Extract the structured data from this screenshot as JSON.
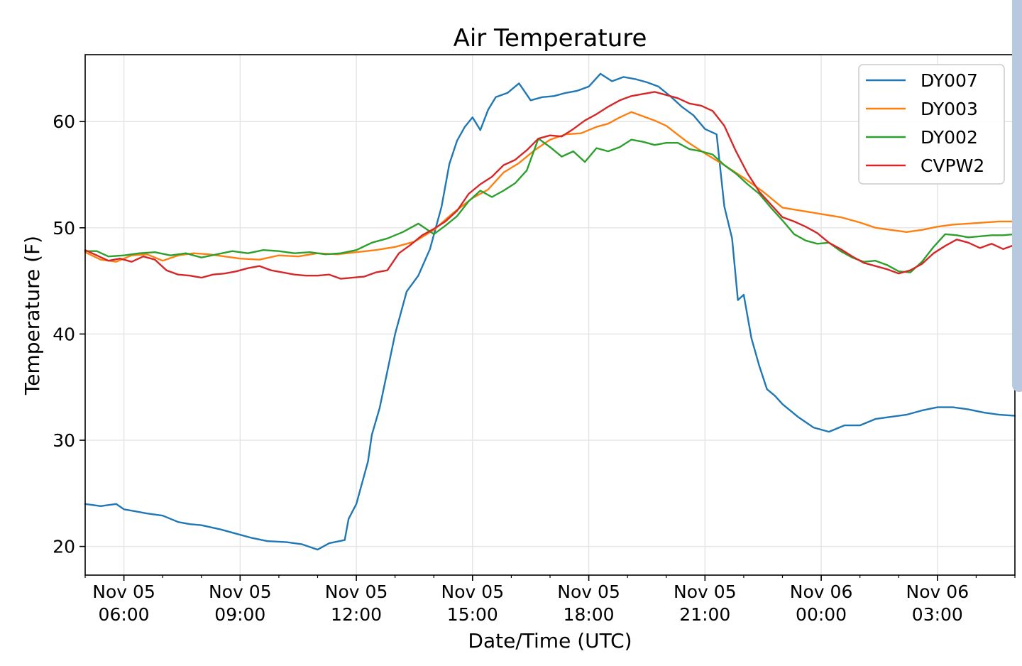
{
  "chart_data": {
    "type": "line",
    "title": "Air Temperature",
    "xlabel": "Date/Time (UTC)",
    "ylabel": "Temperature (F)",
    "x_unit": "hours since Nov 05 00:00 UTC",
    "xlim": [
      5.0,
      29.0
    ],
    "ylim": [
      17.3,
      66.3
    ],
    "grid": true,
    "legend_position": "top-right",
    "y_ticks": [
      20,
      30,
      40,
      50,
      60
    ],
    "x_ticks": [
      {
        "value": 6,
        "line1": "Nov 05",
        "line2": "06:00"
      },
      {
        "value": 9,
        "line1": "Nov 05",
        "line2": "09:00"
      },
      {
        "value": 12,
        "line1": "Nov 05",
        "line2": "12:00"
      },
      {
        "value": 15,
        "line1": "Nov 05",
        "line2": "15:00"
      },
      {
        "value": 18,
        "line1": "Nov 05",
        "line2": "18:00"
      },
      {
        "value": 21,
        "line1": "Nov 05",
        "line2": "21:00"
      },
      {
        "value": 24,
        "line1": "Nov 06",
        "line2": "00:00"
      },
      {
        "value": 27,
        "line1": "Nov 06",
        "line2": "03:00"
      }
    ],
    "series": [
      {
        "name": "DY007",
        "color": "#1f77b4",
        "x": [
          5.0,
          5.4,
          5.8,
          6.0,
          6.3,
          6.6,
          7.0,
          7.4,
          7.7,
          8.0,
          8.5,
          8.9,
          9.3,
          9.7,
          10.2,
          10.6,
          11.0,
          11.3,
          11.7,
          11.8,
          12.0,
          12.3,
          12.4,
          12.6,
          12.8,
          13.0,
          13.3,
          13.6,
          13.9,
          14.2,
          14.4,
          14.6,
          14.8,
          15.0,
          15.2,
          15.4,
          15.6,
          15.9,
          16.2,
          16.5,
          16.8,
          17.1,
          17.4,
          17.7,
          18.0,
          18.3,
          18.6,
          18.9,
          19.2,
          19.5,
          19.8,
          20.1,
          20.4,
          20.7,
          21.0,
          21.3,
          21.5,
          21.7,
          21.85,
          22.0,
          22.2,
          22.4,
          22.6,
          22.8,
          23.0,
          23.4,
          23.8,
          24.2,
          24.6,
          25.0,
          25.4,
          25.8,
          26.2,
          26.6,
          27.0,
          27.4,
          27.8,
          28.2,
          28.6,
          29.0
        ],
        "y": [
          24.0,
          23.8,
          24.0,
          23.5,
          23.3,
          23.1,
          22.9,
          22.3,
          22.1,
          22.0,
          21.6,
          21.2,
          20.8,
          20.5,
          20.4,
          20.2,
          19.7,
          20.3,
          20.6,
          22.6,
          24.0,
          28.0,
          30.5,
          33.0,
          36.5,
          40.0,
          44.0,
          45.5,
          48.0,
          52.0,
          56.0,
          58.2,
          59.5,
          60.4,
          59.2,
          61.1,
          62.3,
          62.7,
          63.6,
          62.0,
          62.3,
          62.4,
          62.7,
          62.9,
          63.3,
          64.5,
          63.8,
          64.2,
          64.0,
          63.7,
          63.3,
          62.4,
          61.4,
          60.6,
          59.3,
          58.8,
          52.0,
          49.0,
          43.2,
          43.7,
          39.6,
          37.0,
          34.8,
          34.2,
          33.4,
          32.2,
          31.2,
          30.8,
          31.4,
          31.4,
          32.0,
          32.2,
          32.4,
          32.8,
          33.1,
          33.1,
          32.9,
          32.6,
          32.4,
          32.3
        ]
      },
      {
        "name": "DY003",
        "color": "#ff7f0e",
        "x": [
          5.0,
          5.4,
          5.8,
          6.2,
          6.6,
          7.0,
          7.4,
          7.8,
          8.2,
          8.6,
          9.0,
          9.5,
          10.0,
          10.5,
          11.0,
          11.5,
          12.0,
          12.5,
          13.0,
          13.5,
          14.0,
          14.5,
          15.0,
          15.4,
          15.8,
          16.2,
          16.6,
          17.0,
          17.4,
          17.8,
          18.2,
          18.5,
          18.8,
          19.1,
          19.4,
          19.7,
          20.0,
          20.5,
          21.0,
          21.5,
          22.0,
          22.5,
          23.0,
          23.5,
          24.0,
          24.5,
          25.0,
          25.4,
          25.8,
          26.2,
          26.6,
          27.0,
          27.4,
          27.8,
          28.2,
          28.6,
          29.0
        ],
        "y": [
          47.7,
          47.0,
          46.8,
          47.4,
          47.5,
          46.9,
          47.4,
          47.6,
          47.5,
          47.3,
          47.1,
          47.0,
          47.4,
          47.3,
          47.6,
          47.5,
          47.7,
          47.9,
          48.2,
          48.7,
          49.8,
          51.4,
          52.8,
          53.6,
          55.2,
          56.1,
          57.3,
          58.3,
          58.8,
          58.9,
          59.5,
          59.8,
          60.4,
          60.9,
          60.5,
          60.1,
          59.6,
          58.2,
          57.0,
          55.9,
          54.7,
          53.4,
          51.9,
          51.6,
          51.3,
          51.0,
          50.5,
          50.0,
          49.8,
          49.6,
          49.8,
          50.1,
          50.3,
          50.4,
          50.5,
          50.6,
          50.6
        ]
      },
      {
        "name": "DY002",
        "color": "#2ca02c",
        "x": [
          5.0,
          5.3,
          5.6,
          6.0,
          6.4,
          6.8,
          7.2,
          7.6,
          8.0,
          8.4,
          8.8,
          9.2,
          9.6,
          10.0,
          10.4,
          10.8,
          11.2,
          11.6,
          12.0,
          12.4,
          12.8,
          13.2,
          13.6,
          14.0,
          14.3,
          14.6,
          14.9,
          15.2,
          15.5,
          15.8,
          16.1,
          16.4,
          16.7,
          17.0,
          17.3,
          17.6,
          17.9,
          18.2,
          18.5,
          18.8,
          19.1,
          19.4,
          19.7,
          20.0,
          20.3,
          20.6,
          20.9,
          21.2,
          21.5,
          21.8,
          22.1,
          22.4,
          22.7,
          23.0,
          23.3,
          23.6,
          23.9,
          24.2,
          24.5,
          24.8,
          25.1,
          25.4,
          25.7,
          26.0,
          26.3,
          26.6,
          26.9,
          27.2,
          27.5,
          27.8,
          28.1,
          28.4,
          28.7,
          29.0
        ],
        "y": [
          47.8,
          47.8,
          47.3,
          47.4,
          47.6,
          47.7,
          47.4,
          47.6,
          47.2,
          47.5,
          47.8,
          47.6,
          47.9,
          47.8,
          47.6,
          47.7,
          47.5,
          47.6,
          47.9,
          48.6,
          49.0,
          49.6,
          50.4,
          49.4,
          50.2,
          51.1,
          52.5,
          53.5,
          52.9,
          53.5,
          54.2,
          55.4,
          58.4,
          57.6,
          56.7,
          57.2,
          56.2,
          57.5,
          57.2,
          57.6,
          58.3,
          58.1,
          57.8,
          58.0,
          58.0,
          57.4,
          57.2,
          56.9,
          55.9,
          55.1,
          54.1,
          53.2,
          51.9,
          50.7,
          49.4,
          48.8,
          48.5,
          48.6,
          47.8,
          47.2,
          46.8,
          46.9,
          46.5,
          45.9,
          45.8,
          46.8,
          48.2,
          49.4,
          49.3,
          49.1,
          49.2,
          49.3,
          49.3,
          49.4
        ]
      },
      {
        "name": "CVPW2",
        "color": "#d62728",
        "x": [
          5.0,
          5.3,
          5.6,
          5.9,
          6.2,
          6.5,
          6.8,
          7.1,
          7.4,
          7.7,
          8.0,
          8.3,
          8.6,
          8.9,
          9.2,
          9.5,
          9.8,
          10.1,
          10.4,
          10.7,
          11.0,
          11.3,
          11.6,
          11.9,
          12.2,
          12.5,
          12.8,
          13.1,
          13.4,
          13.7,
          14.0,
          14.3,
          14.6,
          14.9,
          15.2,
          15.5,
          15.8,
          16.1,
          16.4,
          16.7,
          17.0,
          17.3,
          17.6,
          17.9,
          18.2,
          18.5,
          18.8,
          19.1,
          19.4,
          19.7,
          20.0,
          20.3,
          20.6,
          20.9,
          21.2,
          21.5,
          21.8,
          22.1,
          22.4,
          22.7,
          23.0,
          23.3,
          23.6,
          23.9,
          24.2,
          24.5,
          24.8,
          25.1,
          25.4,
          25.7,
          26.0,
          26.3,
          26.6,
          26.9,
          27.2,
          27.5,
          27.8,
          28.1,
          28.4,
          28.7,
          29.0
        ],
        "y": [
          47.9,
          47.4,
          46.9,
          47.1,
          46.8,
          47.3,
          47.0,
          46.0,
          45.6,
          45.5,
          45.3,
          45.6,
          45.7,
          45.9,
          46.2,
          46.4,
          46.0,
          45.8,
          45.6,
          45.5,
          45.5,
          45.6,
          45.2,
          45.3,
          45.4,
          45.8,
          46.0,
          47.6,
          48.4,
          49.3,
          49.9,
          50.6,
          51.6,
          53.2,
          54.1,
          54.8,
          55.9,
          56.4,
          57.3,
          58.4,
          58.7,
          58.6,
          59.3,
          60.1,
          60.7,
          61.4,
          62.0,
          62.4,
          62.6,
          62.8,
          62.5,
          62.2,
          61.7,
          61.5,
          61.0,
          59.6,
          57.2,
          55.1,
          53.4,
          52.2,
          51.0,
          50.6,
          50.1,
          49.5,
          48.6,
          48.0,
          47.3,
          46.7,
          46.4,
          46.1,
          45.7,
          46.0,
          46.6,
          47.6,
          48.3,
          48.9,
          48.6,
          48.1,
          48.5,
          48.0,
          48.4
        ]
      }
    ]
  }
}
